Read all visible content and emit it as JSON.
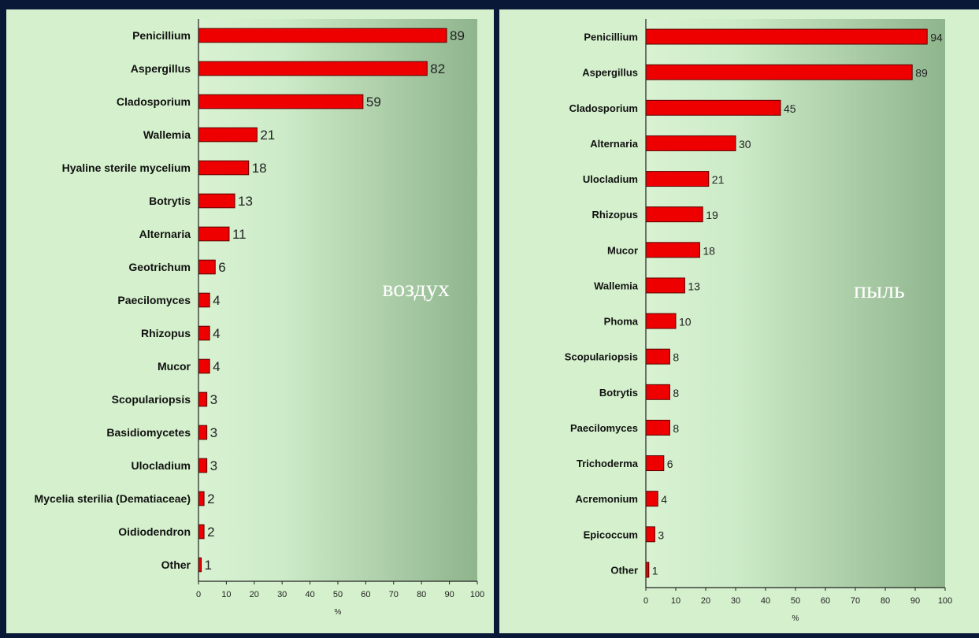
{
  "chart_data": [
    {
      "type": "bar",
      "orientation": "horizontal",
      "annotation": "воздух",
      "categories": [
        "Penicillium",
        "Aspergillus",
        "Cladosporium",
        "Wallemia",
        "Hyaline sterile mycelium",
        "Botrytis",
        "Alternaria",
        "Geotrichum",
        "Paecilomyces",
        "Rhizopus",
        "Mucor",
        "Scopulariopsis",
        "Basidiomycetes",
        "Ulocladium",
        "Mycelia sterilia (Dematiaceae)",
        "Oidiodendron",
        "Other"
      ],
      "values": [
        89,
        82,
        59,
        21,
        18,
        13,
        11,
        6,
        4,
        4,
        4,
        3,
        3,
        3,
        2,
        2,
        1
      ],
      "xlabel": "%",
      "xlim": [
        0,
        100
      ],
      "xticks": [
        0,
        10,
        20,
        30,
        40,
        50,
        60,
        70,
        80,
        90,
        100
      ],
      "bar_color": "#ee0000",
      "plot_background": "gradient light green to dark green"
    },
    {
      "type": "bar",
      "orientation": "horizontal",
      "annotation": "пыль",
      "categories": [
        "Penicillium",
        "Aspergillus",
        "Cladosporium",
        "Alternaria",
        "Ulocladium",
        "Rhizopus",
        "Mucor",
        "Wallemia",
        "Phoma",
        "Scopulariopsis",
        "Botrytis",
        "Paecilomyces",
        "Trichoderma",
        "Acremonium",
        "Epicoccum",
        "Other"
      ],
      "values": [
        94,
        89,
        45,
        30,
        21,
        19,
        18,
        13,
        10,
        8,
        8,
        8,
        6,
        4,
        3,
        1
      ],
      "xlabel": "%",
      "xlim": [
        0,
        100
      ],
      "xticks": [
        0,
        10,
        20,
        30,
        40,
        50,
        60,
        70,
        80,
        90,
        100
      ],
      "bar_color": "#ee0000",
      "plot_background": "gradient light green to dark green"
    }
  ]
}
